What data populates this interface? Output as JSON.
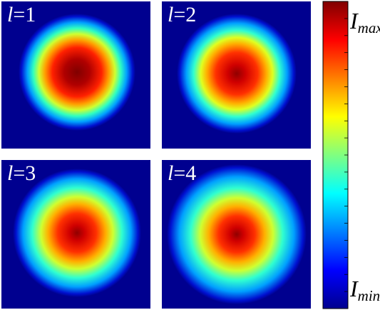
{
  "panels": [
    {
      "variable": "l",
      "index": "=1"
    },
    {
      "variable": "l",
      "index": "=2"
    },
    {
      "variable": "l",
      "index": "=3"
    },
    {
      "variable": "l",
      "index": "=4"
    }
  ],
  "colorbar": {
    "max_label": {
      "symbol": "I",
      "subscript": "max"
    },
    "min_label": {
      "symbol": "I",
      "subscript": "min"
    }
  }
}
